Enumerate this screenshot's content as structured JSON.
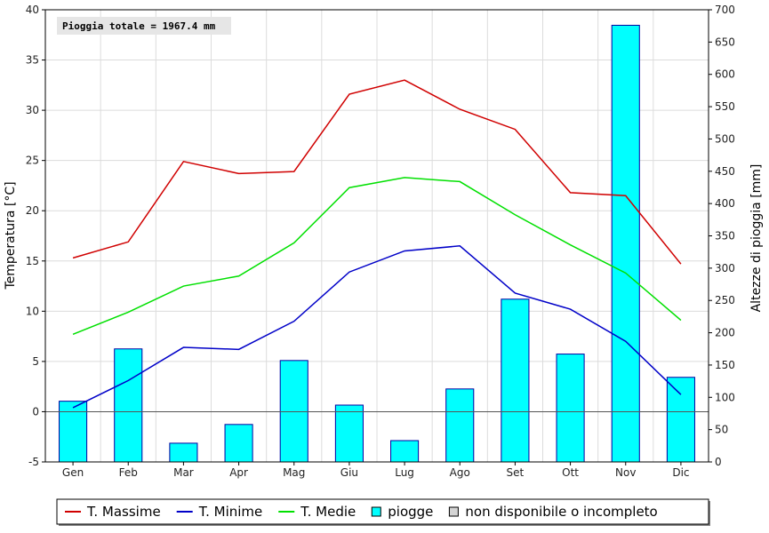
{
  "chart_data": {
    "type": "bar+line",
    "categories": [
      "Gen",
      "Feb",
      "Mar",
      "Apr",
      "Mag",
      "Giu",
      "Lug",
      "Ago",
      "Set",
      "Ott",
      "Nov",
      "Dic"
    ],
    "y_left": {
      "label": "Temperatura [°C]",
      "lim": [
        -5,
        40
      ],
      "ticks": [
        -5,
        0,
        5,
        10,
        15,
        20,
        25,
        30,
        35,
        40
      ]
    },
    "y_right": {
      "label": "Altezze di pioggia [mm]",
      "lim": [
        0,
        700
      ],
      "ticks": [
        0,
        50,
        100,
        150,
        200,
        250,
        300,
        350,
        400,
        450,
        500,
        550,
        600,
        650,
        700
      ]
    },
    "annotation": "Pioggia totale = 1967.4 mm",
    "grid": true,
    "legend_position": "bottom",
    "series": [
      {
        "name": "T. Massime",
        "color": "#d00000",
        "axis": "left",
        "kind": "line",
        "values": [
          15.3,
          16.9,
          24.9,
          23.7,
          23.9,
          31.6,
          33.0,
          30.1,
          28.1,
          21.8,
          21.5,
          14.7
        ]
      },
      {
        "name": "T. Minime",
        "color": "#0000c8",
        "axis": "left",
        "kind": "line",
        "values": [
          0.4,
          3.1,
          6.4,
          6.2,
          9.0,
          13.9,
          16.0,
          16.5,
          11.8,
          10.2,
          7.0,
          1.7
        ]
      },
      {
        "name": "T. Medie",
        "color": "#00e000",
        "axis": "left",
        "kind": "line",
        "values": [
          7.7,
          9.9,
          12.5,
          13.5,
          16.8,
          22.3,
          23.3,
          22.9,
          19.6,
          16.6,
          13.8,
          9.1
        ]
      },
      {
        "name": "piogge",
        "color": "#00ffff",
        "axis": "right",
        "kind": "bar",
        "values": [
          94,
          175,
          29,
          58,
          157,
          88,
          33,
          113,
          252,
          167,
          676,
          131
        ]
      }
    ],
    "legend_extra": {
      "name": "non disponibile o incompleto",
      "color": "#d4d4d4"
    }
  }
}
